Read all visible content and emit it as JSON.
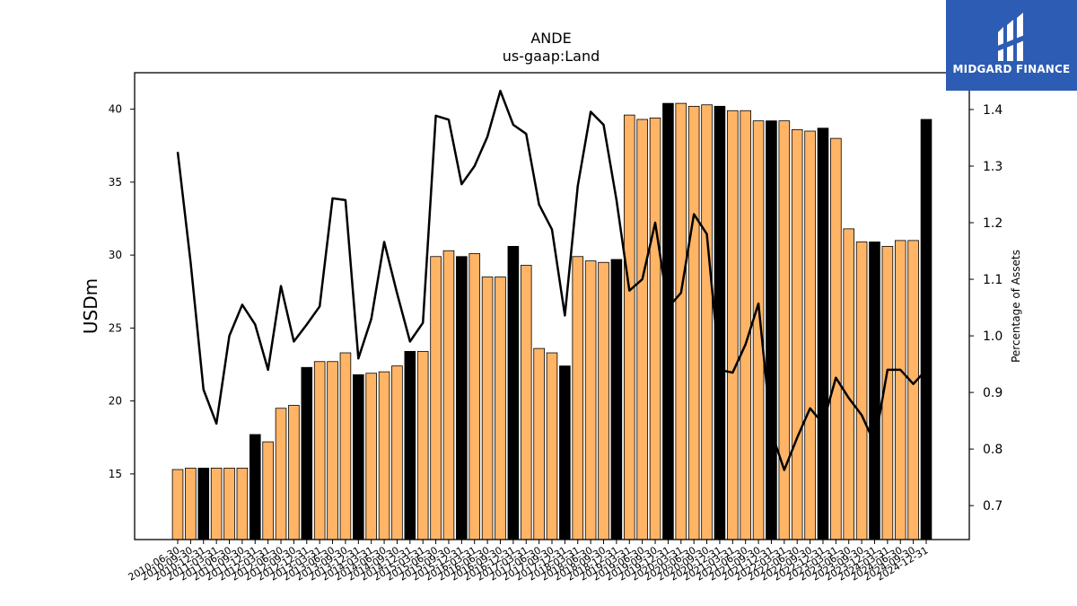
{
  "chart_data": {
    "type": "bar+line",
    "title": "ANDE",
    "subtitle": "us-gaap:Land",
    "ylabel": "USDm",
    "y2label": "Percentage of Assets",
    "ylim": [
      10.5,
      42.5
    ],
    "y2lim": [
      0.64,
      1.465
    ],
    "yticks": [
      15,
      20,
      25,
      30,
      35,
      40
    ],
    "y2ticks": [
      0.7,
      0.8,
      0.9,
      1.0,
      1.1,
      1.2,
      1.3,
      1.4
    ],
    "y2tick_labels": [
      "0.7",
      "0.8",
      "0.9",
      "1.0",
      "1.1",
      "1.2",
      "1.3",
      "1.4"
    ],
    "categories": [
      "2010-06-30",
      "2010-09-30",
      "2010-12-31",
      "2011-03-31",
      "2011-06-30",
      "2011-09-30",
      "2011-12-31",
      "2012-03-31",
      "2012-06-30",
      "2012-09-30",
      "2012-12-31",
      "2013-03-31",
      "2013-06-30",
      "2013-09-30",
      "2013-12-31",
      "2014-03-31",
      "2014-06-30",
      "2014-09-30",
      "2014-12-31",
      "2015-03-31",
      "2015-06-30",
      "2015-09-30",
      "2015-12-31",
      "2016-03-31",
      "2016-06-30",
      "2016-09-30",
      "2016-12-31",
      "2017-03-31",
      "2017-06-30",
      "2017-09-30",
      "2017-12-31",
      "2018-03-31",
      "2018-06-30",
      "2018-09-30",
      "2018-12-31",
      "2019-03-31",
      "2019-06-30",
      "2019-09-30",
      "2019-12-31",
      "2020-03-31",
      "2020-06-30",
      "2020-09-30",
      "2020-12-31",
      "2021-03-31",
      "2021-06-30",
      "2021-09-30",
      "2021-12-31",
      "2022-03-31",
      "2022-06-30",
      "2022-09-30",
      "2022-12-31",
      "2023-03-31",
      "2023-06-30",
      "2023-09-30",
      "2023-12-31",
      "2024-03-31",
      "2024-06-30",
      "2024-09-30",
      "2024-12-31"
    ],
    "bar_values": [
      15.3,
      15.4,
      15.4,
      15.4,
      15.4,
      15.4,
      17.7,
      17.2,
      19.5,
      19.7,
      22.3,
      22.7,
      22.7,
      23.3,
      21.8,
      21.9,
      22.0,
      22.4,
      23.4,
      23.4,
      29.9,
      30.3,
      29.9,
      30.1,
      28.5,
      28.5,
      30.6,
      29.3,
      23.6,
      23.3,
      22.4,
      29.9,
      29.6,
      29.5,
      29.7,
      39.6,
      39.3,
      39.4,
      40.4,
      40.4,
      40.2,
      40.3,
      40.2,
      39.9,
      39.9,
      39.2,
      39.2,
      39.2,
      38.6,
      38.5,
      38.7,
      38.0,
      31.8,
      30.9,
      30.9,
      30.6,
      31.0,
      31.0,
      39.3
    ],
    "bar_highlight": [
      false,
      false,
      true,
      false,
      false,
      false,
      true,
      false,
      false,
      false,
      true,
      false,
      false,
      false,
      true,
      false,
      false,
      false,
      true,
      false,
      false,
      false,
      true,
      false,
      false,
      false,
      true,
      false,
      false,
      false,
      true,
      false,
      false,
      false,
      true,
      false,
      false,
      false,
      true,
      false,
      false,
      false,
      true,
      false,
      false,
      false,
      true,
      false,
      false,
      false,
      true,
      false,
      false,
      false,
      true,
      false,
      false,
      false,
      true
    ],
    "line_values": [
      1.325,
      1.13,
      0.905,
      0.845,
      1.0,
      1.055,
      1.02,
      0.94,
      1.088,
      0.99,
      1.02,
      1.052,
      1.243,
      1.24,
      0.96,
      1.03,
      1.166,
      1.075,
      0.99,
      1.023,
      1.389,
      1.382,
      1.268,
      1.3,
      1.352,
      1.433,
      1.373,
      1.357,
      1.232,
      1.188,
      1.036,
      1.265,
      1.396,
      1.373,
      1.24,
      1.08,
      1.1,
      1.2,
      1.05,
      1.076,
      1.215,
      1.18,
      0.94,
      0.935,
      0.985,
      1.057,
      0.83,
      0.763,
      0.82,
      0.872,
      0.845,
      0.926,
      0.89,
      0.86,
      0.81,
      0.94,
      0.94,
      0.915,
      0.94
    ],
    "colors": {
      "bar": "#ffb466",
      "bar_highlight": "#000000",
      "bar_edge": "#000000",
      "line": "#000000"
    }
  },
  "logo": {
    "text": "MIDGARD FINANCE",
    "bg": "#2d5cb4"
  }
}
